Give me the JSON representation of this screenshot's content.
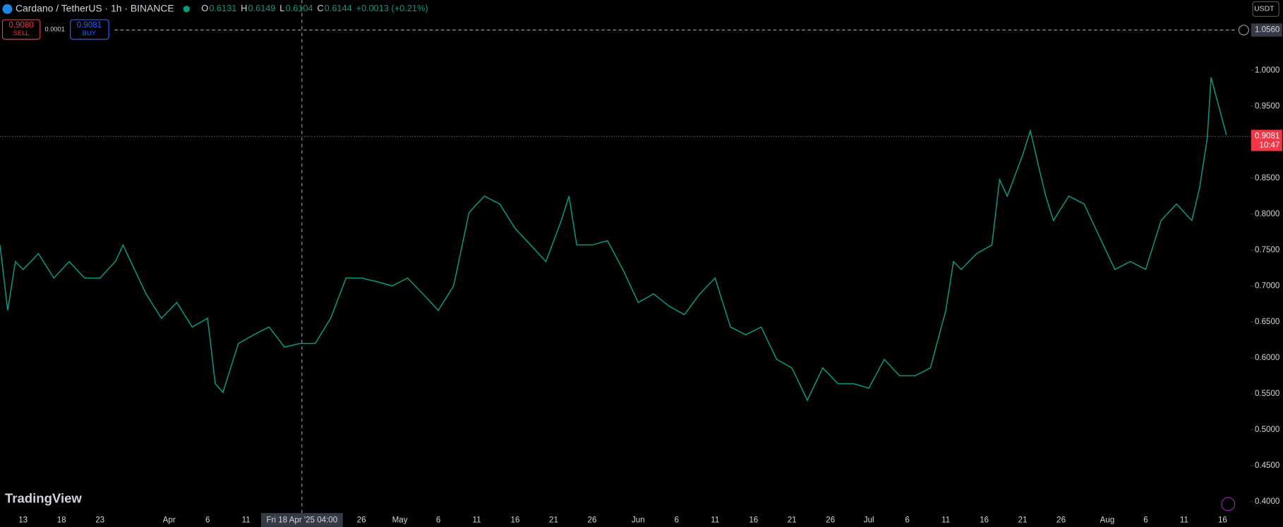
{
  "header": {
    "symbol": "Cardano / TetherUS · 1h · BINANCE",
    "ohlc": [
      {
        "key": "O",
        "value": "0.6131"
      },
      {
        "key": "H",
        "value": "0.6149"
      },
      {
        "key": "L",
        "value": "0.6104"
      },
      {
        "key": "C",
        "value": "0.6144"
      }
    ],
    "change": "+0.0013 (+0.21%)"
  },
  "trade": {
    "sell_price": "0.9080",
    "sell": "SELL",
    "spread": "0.0001",
    "buy_price": "0.9081",
    "buy": "BUY"
  },
  "currency": "USDT",
  "brand": "TradingView",
  "chart_data": {
    "type": "line",
    "color": "#089981",
    "grid": false,
    "xlim": [
      -3,
      159.6
    ],
    "ylim": [
      0.3841,
      1.0977
    ],
    "x": [
      -3,
      -2,
      -1,
      0,
      2,
      4,
      6,
      8,
      10,
      12,
      13,
      14,
      16,
      18,
      20,
      22,
      24,
      25,
      26,
      27,
      28,
      30,
      32,
      34,
      36,
      38,
      40,
      42,
      44,
      46,
      48,
      50,
      52,
      54,
      56,
      58,
      60,
      62,
      64,
      66,
      68,
      70,
      71,
      72,
      74,
      76,
      78,
      80,
      82,
      84,
      86,
      88,
      90,
      92,
      94,
      96,
      98,
      100,
      102,
      104,
      106,
      108,
      110,
      112,
      114,
      116,
      118,
      120,
      121,
      122,
      124,
      126,
      127,
      128,
      130,
      131,
      132,
      133,
      134,
      136,
      138,
      140,
      142,
      144,
      146,
      148,
      150,
      152,
      153,
      154,
      154.5,
      155.5,
      156.5
    ],
    "values": [
      0.757,
      0.666,
      0.734,
      0.723,
      0.745,
      0.711,
      0.734,
      0.711,
      0.711,
      0.734,
      0.757,
      0.734,
      0.689,
      0.655,
      0.677,
      0.643,
      0.655,
      0.564,
      0.552,
      0.586,
      0.62,
      0.632,
      0.643,
      0.615,
      0.62,
      0.62,
      0.655,
      0.711,
      0.711,
      0.706,
      0.7,
      0.711,
      0.689,
      0.666,
      0.7,
      0.802,
      0.825,
      0.814,
      0.78,
      0.757,
      0.734,
      0.791,
      0.825,
      0.757,
      0.757,
      0.763,
      0.723,
      0.677,
      0.689,
      0.672,
      0.66,
      0.689,
      0.711,
      0.643,
      0.632,
      0.643,
      0.598,
      0.586,
      0.541,
      0.586,
      0.564,
      0.564,
      0.558,
      0.598,
      0.575,
      0.575,
      0.586,
      0.666,
      0.734,
      0.723,
      0.745,
      0.757,
      0.848,
      0.825,
      0.882,
      0.916,
      0.87,
      0.825,
      0.791,
      0.825,
      0.814,
      0.768,
      0.723,
      0.734,
      0.723,
      0.791,
      0.814,
      0.791,
      0.836,
      0.905,
      0.99,
      0.95,
      0.91
    ],
    "yticks": [
      {
        "value": 0.4,
        "label": "0.4000"
      },
      {
        "value": 0.45,
        "label": "0.4500"
      },
      {
        "value": 0.5,
        "label": "0.5000"
      },
      {
        "value": 0.55,
        "label": "0.5500"
      },
      {
        "value": 0.6,
        "label": "0.6000"
      },
      {
        "value": 0.65,
        "label": "0.6500"
      },
      {
        "value": 0.7,
        "label": "0.7000"
      },
      {
        "value": 0.75,
        "label": "0.7500"
      },
      {
        "value": 0.8,
        "label": "0.8000"
      },
      {
        "value": 0.85,
        "label": "0.8500"
      },
      {
        "value": 0.9,
        "label": "0.9000"
      },
      {
        "value": 0.95,
        "label": "0.9500"
      },
      {
        "value": 1.0,
        "label": "1.0000"
      }
    ],
    "xticks": [
      {
        "value": 0,
        "label": "13"
      },
      {
        "value": 5,
        "label": "18"
      },
      {
        "value": 10,
        "label": "23"
      },
      {
        "value": 19,
        "label": "Apr"
      },
      {
        "value": 24,
        "label": "6"
      },
      {
        "value": 29,
        "label": "11"
      },
      {
        "value": 44,
        "label": "26"
      },
      {
        "value": 49,
        "label": "May"
      },
      {
        "value": 54,
        "label": "6"
      },
      {
        "value": 59,
        "label": "11"
      },
      {
        "value": 64,
        "label": "16"
      },
      {
        "value": 69,
        "label": "21"
      },
      {
        "value": 74,
        "label": "26"
      },
      {
        "value": 80,
        "label": "Jun"
      },
      {
        "value": 85,
        "label": "6"
      },
      {
        "value": 90,
        "label": "11"
      },
      {
        "value": 95,
        "label": "16"
      },
      {
        "value": 100,
        "label": "21"
      },
      {
        "value": 105,
        "label": "26"
      },
      {
        "value": 110,
        "label": "Jul"
      },
      {
        "value": 115,
        "label": "6"
      },
      {
        "value": 120,
        "label": "11"
      },
      {
        "value": 125,
        "label": "16"
      },
      {
        "value": 130,
        "label": "21"
      },
      {
        "value": 135,
        "label": "26"
      },
      {
        "value": 141,
        "label": "Aug"
      },
      {
        "value": 146,
        "label": "6"
      },
      {
        "value": 151,
        "label": "11"
      },
      {
        "value": 156,
        "label": "16"
      }
    ],
    "alert_line": {
      "value": 1.056,
      "label": "1.0560"
    },
    "last_price": {
      "value": 0.9081,
      "label": "0.9081",
      "countdown": "10:47"
    },
    "crosshair_label": "Fri 18 Apr '25 04:00"
  }
}
